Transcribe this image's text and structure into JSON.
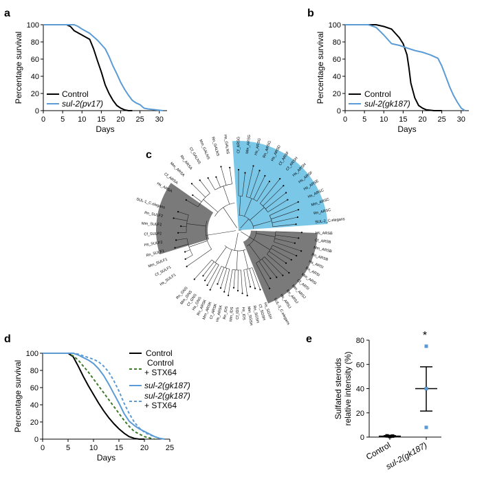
{
  "colors": {
    "control": "#000000",
    "mutant": "#5b9bd5",
    "stx_control": "#3d7a28",
    "highlight_blue": "#7ac7e8",
    "highlight_gray": "#7a7a7a"
  },
  "chart_data": [
    {
      "panel": "a",
      "type": "line",
      "title": "",
      "xlabel": "Days",
      "ylabel": "Percentage survival",
      "xlim": [
        0,
        32
      ],
      "ylim": [
        0,
        100
      ],
      "xticks": [
        0,
        5,
        10,
        15,
        20,
        25,
        30
      ],
      "yticks": [
        0,
        20,
        40,
        60,
        80,
        100
      ],
      "legend": "bottom-left",
      "series": [
        {
          "name": "Control",
          "color": "#000000",
          "dash": "solid",
          "x": [
            0,
            6,
            7,
            8,
            10,
            12,
            13,
            14,
            15,
            16,
            17,
            18,
            19,
            20,
            21,
            22,
            23
          ],
          "y": [
            100,
            100,
            98,
            93,
            88,
            83,
            72,
            58,
            45,
            30,
            20,
            12,
            6,
            3,
            1,
            0,
            0
          ]
        },
        {
          "name": "sul-2(pv17)",
          "color": "#5b9bd5",
          "dash": "solid",
          "x": [
            0,
            8,
            9,
            10,
            12,
            14,
            16,
            17,
            18,
            19,
            20,
            21,
            22,
            23,
            24,
            25,
            26,
            27,
            29,
            31
          ],
          "y": [
            100,
            100,
            98,
            95,
            90,
            82,
            72,
            63,
            52,
            43,
            33,
            25,
            18,
            12,
            9,
            7,
            3,
            2,
            1,
            0
          ]
        }
      ]
    },
    {
      "panel": "b",
      "type": "line",
      "title": "",
      "xlabel": "Days",
      "ylabel": "Percentage survival",
      "xlim": [
        0,
        32
      ],
      "ylim": [
        0,
        100
      ],
      "xticks": [
        0,
        5,
        10,
        15,
        20,
        25,
        30
      ],
      "yticks": [
        0,
        20,
        40,
        60,
        80,
        100
      ],
      "legend": "bottom-left",
      "series": [
        {
          "name": "Control",
          "color": "#000000",
          "dash": "solid",
          "x": [
            0,
            8,
            10,
            12,
            13,
            14,
            15,
            16,
            16.5,
            17,
            18,
            19,
            20,
            21,
            23,
            25
          ],
          "y": [
            100,
            100,
            98,
            95,
            90,
            85,
            78,
            65,
            50,
            32,
            15,
            6,
            3,
            1,
            0,
            0
          ]
        },
        {
          "name": "sul-2(gk187)",
          "color": "#5b9bd5",
          "dash": "solid",
          "x": [
            0,
            6,
            8,
            10,
            12,
            14,
            16,
            18,
            20,
            22,
            24,
            25,
            26,
            27,
            28,
            29,
            30,
            31
          ],
          "y": [
            100,
            100,
            97,
            88,
            78,
            76,
            73,
            70,
            68,
            65,
            61,
            52,
            40,
            28,
            18,
            10,
            3,
            0
          ]
        }
      ]
    },
    {
      "panel": "d",
      "type": "line",
      "title": "",
      "xlabel": "Days",
      "ylabel": "Percentage survival",
      "xlim": [
        0,
        25
      ],
      "ylim": [
        0,
        100
      ],
      "xticks": [
        0,
        5,
        10,
        15,
        20,
        25
      ],
      "yticks": [
        0,
        20,
        40,
        60,
        80,
        100
      ],
      "legend": "top-right",
      "series": [
        {
          "name": "Control",
          "color": "#000000",
          "dash": "solid",
          "x": [
            0,
            5,
            6,
            7,
            8,
            9,
            10,
            11,
            12,
            13,
            14,
            15,
            16,
            17,
            18,
            19,
            20
          ],
          "y": [
            100,
            100,
            96,
            85,
            73,
            62,
            52,
            42,
            33,
            25,
            18,
            12,
            7,
            3,
            1,
            0,
            0
          ]
        },
        {
          "name": "Control + STX64",
          "color": "#3d7a28",
          "dash": "dashed",
          "x": [
            0,
            5,
            6,
            7,
            8,
            9,
            10,
            11,
            12,
            13,
            14,
            15,
            16,
            17,
            18,
            20,
            22
          ],
          "y": [
            100,
            100,
            97,
            92,
            85,
            78,
            70,
            62,
            54,
            46,
            38,
            30,
            22,
            15,
            9,
            3,
            0
          ]
        },
        {
          "name": "sul-2(gk187)",
          "color": "#5b9bd5",
          "dash": "solid",
          "x": [
            0,
            6,
            7,
            8,
            9,
            10,
            11,
            12,
            13,
            14,
            15,
            16,
            17,
            18,
            19,
            20,
            21,
            22,
            23,
            24
          ],
          "y": [
            100,
            100,
            98,
            95,
            92,
            88,
            82,
            74,
            64,
            53,
            42,
            30,
            21,
            16,
            12,
            9,
            6,
            3,
            1,
            0
          ]
        },
        {
          "name": "sul-2(gk187) + STX64",
          "color": "#5b9bd5",
          "dash": "dashed",
          "x": [
            0,
            6,
            7,
            8,
            9,
            10,
            11,
            12,
            13,
            14,
            15,
            16,
            17,
            18,
            19,
            20,
            21,
            22,
            23,
            24
          ],
          "y": [
            100,
            100,
            99,
            97,
            95,
            93,
            90,
            85,
            78,
            68,
            56,
            42,
            30,
            20,
            13,
            8,
            5,
            3,
            1,
            0
          ]
        }
      ]
    },
    {
      "panel": "e",
      "type": "scatter",
      "title": "",
      "xlabel": "",
      "ylabel": "Sulfated steroids relative intensity (%)",
      "ylabel_lines": [
        "Sulfated steroids",
        "relative intensity (%)"
      ],
      "ylim": [
        0,
        80
      ],
      "yticks": [
        0,
        20,
        40,
        60,
        80
      ],
      "categories": [
        "Control",
        "sul-2(gk187)"
      ],
      "groups": [
        {
          "name": "Control",
          "color": "#000000",
          "points": [
            1.0,
            0.5,
            0.8
          ],
          "mean": 0.8,
          "sem": [
            0.4,
            1.2
          ]
        },
        {
          "name": "sul-2(gk187)",
          "color": "#5b9bd5",
          "points": [
            75,
            40,
            8
          ],
          "mean": 40,
          "sem": [
            21.5,
            58
          ]
        }
      ],
      "significance": "*"
    }
  ],
  "panel_labels": {
    "a": "a",
    "b": "b",
    "c": "c",
    "d": "d",
    "e": "e"
  },
  "legends": {
    "a": {
      "control": "Control",
      "mutant": "sul-2(pv17)"
    },
    "b": {
      "control": "Control",
      "mutant": "sul-2(gk187)"
    },
    "d": {
      "control": "Control",
      "stx_control_1": "Control",
      "stx_control_2": "+ STX64",
      "mutant": "sul-2(gk187)",
      "stx_mutant_1": "sul-2(gk187)",
      "stx_mutant_2": "+ STX64"
    }
  },
  "tree": {
    "leaves": [
      "SUL-2_C.elegans",
      "Rn_ARSC",
      "Mm_ARSC",
      "Hs_ARSC",
      "Hs_ARSE",
      "Hs_ARSF",
      "Hs_ARSH",
      "Cf_ARSH",
      "Cf_ARSF",
      "Hs_ARSD",
      "Rn_ARSG",
      "Hs_ARSG",
      "Mm_ARSG",
      "Cf_ARSG",
      "Hs_GALNS",
      "Rn_GALNS",
      "Mm_GALNS",
      "Cf_GALNS",
      "Rn_ARSA",
      "Mm_ARSA",
      "Cf_ARSA",
      "Hs_ARSA",
      "SUL-1_C.elegans",
      "Rn_SULF2",
      "Mm_SULF2",
      "Cf_SULF2",
      "Hs_SULF2",
      "Rn_SULF1",
      "Mm_SULF1",
      "Cf_SULF1",
      "Hs_SULF1",
      "Rn_GNS",
      "Mm_GNS",
      "Cf_GNS",
      "Hs_GNS",
      "Rn_ARSK",
      "Mm_ARSK",
      "Cf_ARSK",
      "Hs_ARSK",
      "Rn_IDS",
      "Mm_IDS",
      "Cf_IDS",
      "Hs_IDS",
      "Mm_SGSH",
      "Rn_SGSH",
      "Cf_SGSH",
      "Hs_SGSH",
      "SUL-3_C.elegans",
      "Hs_ARSJ",
      "Rn_ARSJ",
      "Mm_ARSJ",
      "Cf_ARSI",
      "Mm_ARSI",
      "Rn_ARSI",
      "Hs_ARSI",
      "Rn_ARSB",
      "Mm_ARSB",
      "Cf_ARSB",
      "Hs_ARSB"
    ]
  }
}
